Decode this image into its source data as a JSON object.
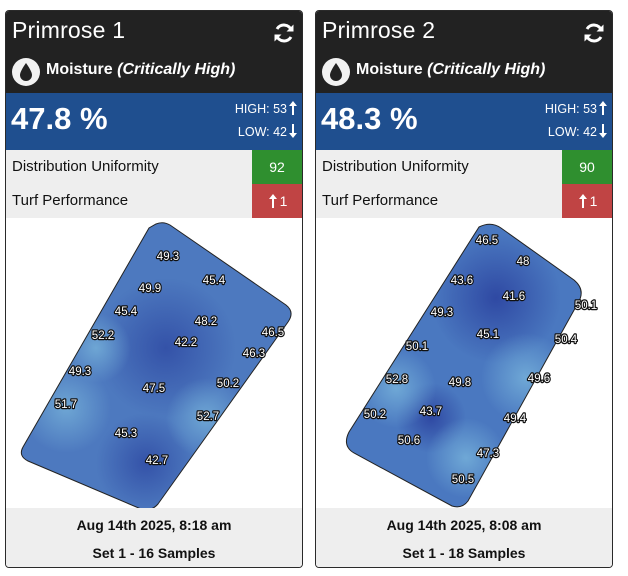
{
  "cards": [
    {
      "title": "Primrose 1",
      "metric_name": "Moisture",
      "metric_status": "(Critically High)",
      "value": "47.8 %",
      "high_label": "HIGH: 53",
      "low_label": "LOW: 42",
      "du_label": "Distribution Uniformity",
      "du_value": "92",
      "turf_label": "Turf Performance",
      "turf_value": "1",
      "date": "Aug 14th 2025, 8:18 am",
      "samples": "Set 1 - 16 Samples",
      "readings": [
        "49.3",
        "45.4",
        "49.9",
        "45.4",
        "48.2",
        "52.2",
        "42.2",
        "46.5",
        "46.3",
        "49.3",
        "47.5",
        "50.2",
        "51.7",
        "52.7",
        "45.3",
        "42.7"
      ]
    },
    {
      "title": "Primrose 2",
      "metric_name": "Moisture",
      "metric_status": "(Critically High)",
      "value": "48.3 %",
      "high_label": "HIGH: 53",
      "low_label": "LOW: 42",
      "du_label": "Distribution Uniformity",
      "du_value": "90",
      "turf_label": "Turf Performance",
      "turf_value": "1",
      "date": "Aug 14th 2025, 8:08 am",
      "samples": "Set 1 - 18 Samples",
      "readings": [
        "46.5",
        "48",
        "43.6",
        "41.6",
        "50.1",
        "49.3",
        "45.1",
        "50.4",
        "50.1",
        "52.8",
        "49.8",
        "49.6",
        "50.2",
        "43.7",
        "49.4",
        "50.6",
        "47.3",
        "50.5"
      ]
    }
  ],
  "colors": {
    "header_bg": "#222222",
    "value_bar": "#1f4f8f",
    "badge_green": "#2f8f2f",
    "badge_red": "#c04444",
    "map_blue": "#4a78c0"
  },
  "icons": [
    "refresh-icon",
    "water-drop-icon",
    "arrow-up-icon",
    "arrow-down-icon"
  ]
}
